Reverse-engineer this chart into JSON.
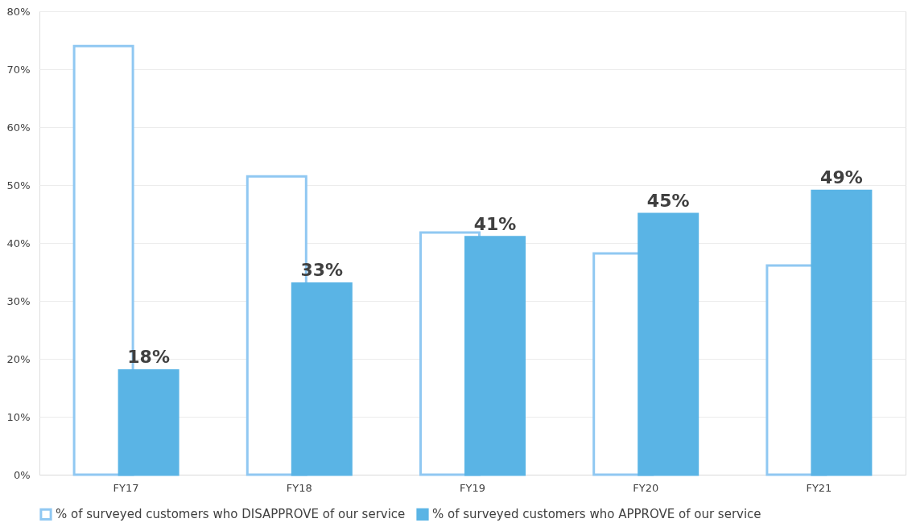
{
  "chart_data": {
    "type": "bar",
    "categories": [
      "FY17",
      "FY18",
      "FY19",
      "FY20",
      "FY21"
    ],
    "series": [
      {
        "name": "% of surveyed customers who DISAPPROVE of our service",
        "color": "#90c8f2",
        "values": [
          74,
          51.5,
          41.8,
          38.2,
          36.1
        ]
      },
      {
        "name": "% of surveyed customers who APPROVE of our service",
        "color": "#5ab4e5",
        "values": [
          18,
          33,
          41,
          45,
          49
        ],
        "value_labels": [
          "18%",
          "33%",
          "41%",
          "45%",
          "49%"
        ]
      }
    ],
    "ylim": [
      0,
      80
    ],
    "yticks": [
      {
        "value": 0,
        "label": "0%"
      },
      {
        "value": 10,
        "label": "10%"
      },
      {
        "value": 20,
        "label": "20%"
      },
      {
        "value": 30,
        "label": "30%"
      },
      {
        "value": 40,
        "label": "40%"
      },
      {
        "value": 50,
        "label": "50%"
      },
      {
        "value": 60,
        "label": "60%"
      },
      {
        "value": 70,
        "label": "70%"
      },
      {
        "value": 80,
        "label": "80%"
      }
    ],
    "grid": "y",
    "legend": "bottom"
  }
}
